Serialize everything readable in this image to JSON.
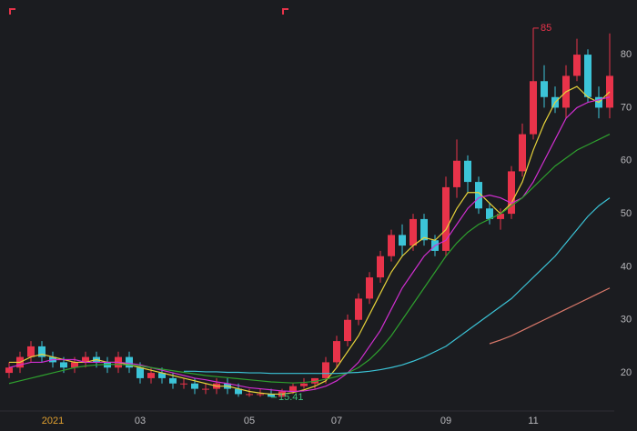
{
  "chart_data": {
    "type": "candlestick",
    "categories": [
      null,
      null,
      null,
      null,
      "2021",
      null,
      null,
      null,
      null,
      null,
      null,
      null,
      "03",
      null,
      null,
      null,
      null,
      null,
      null,
      null,
      null,
      null,
      "05",
      null,
      null,
      null,
      null,
      null,
      null,
      null,
      "07",
      null,
      null,
      null,
      null,
      null,
      null,
      null,
      null,
      null,
      "09",
      null,
      null,
      null,
      null,
      null,
      null,
      null,
      "11",
      null,
      null,
      null,
      null,
      null,
      null,
      null
    ],
    "open": [
      20,
      21,
      23,
      25,
      23,
      22,
      21,
      22,
      23,
      22,
      21,
      23,
      21,
      19,
      20,
      19,
      18,
      18,
      17,
      17,
      18,
      17,
      16,
      16,
      16,
      15.5,
      16.5,
      17.5,
      18,
      19,
      22,
      26,
      30,
      34,
      38,
      42,
      46,
      44,
      49,
      45,
      43,
      55,
      60,
      56,
      51,
      49,
      50,
      58,
      65,
      75,
      72,
      70,
      76,
      80,
      72,
      70
    ],
    "high": [
      22,
      24,
      26,
      26,
      24,
      23,
      23,
      24,
      24,
      23,
      24,
      24,
      22,
      21,
      21,
      20,
      19,
      19,
      18,
      19,
      19,
      18,
      17,
      17,
      17,
      17,
      18,
      19,
      19,
      23,
      27,
      31,
      35,
      39,
      43,
      47,
      48,
      50,
      50,
      46,
      57,
      64,
      61,
      57,
      52,
      51,
      59,
      67,
      85,
      78,
      74,
      78,
      83,
      81,
      74,
      84
    ],
    "low": [
      19,
      20,
      22,
      22,
      21,
      20,
      20,
      21,
      21,
      20,
      20,
      20,
      18,
      18,
      18,
      17,
      17,
      16,
      16,
      16,
      16,
      15.5,
      15.5,
      15.5,
      15.41,
      15.5,
      16,
      17,
      17,
      18,
      21,
      25,
      29,
      33,
      37,
      41,
      42,
      43,
      44,
      42,
      42,
      53,
      54,
      50,
      48,
      47,
      49,
      57,
      64,
      70,
      69,
      68,
      75,
      71,
      68,
      68
    ],
    "close": [
      21,
      23,
      25,
      23,
      22,
      21,
      22,
      23,
      22,
      21,
      23,
      21,
      19,
      20,
      19,
      18,
      18,
      17,
      17,
      18,
      17,
      16,
      16,
      16,
      15.5,
      16.5,
      17.5,
      18,
      19,
      22,
      26,
      30,
      34,
      38,
      42,
      46,
      44,
      49,
      45,
      43,
      55,
      60,
      56,
      51,
      49,
      50,
      58,
      65,
      75,
      72,
      70,
      76,
      80,
      72,
      70,
      76
    ],
    "up_color": "#e8334a",
    "down_color": "#3cc4d8",
    "series": [
      {
        "color": "#e6d23a",
        "values": [
          22,
          22,
          23,
          23.5,
          23,
          22.5,
          22,
          22,
          22.5,
          22,
          22,
          21.5,
          21,
          20.5,
          20,
          19.5,
          19,
          18.5,
          18,
          17.5,
          17.5,
          17,
          16.5,
          16.2,
          16,
          16,
          16.3,
          16.8,
          17.5,
          18.5,
          21,
          24,
          27,
          31,
          35,
          39,
          42,
          44,
          45.5,
          45,
          47,
          51,
          54,
          54,
          52,
          50,
          52,
          56,
          62,
          67,
          71,
          73,
          74,
          72,
          71,
          73
        ]
      },
      {
        "color": "#d02fd0",
        "values": [
          21,
          21.5,
          22,
          22,
          22.5,
          22.5,
          22.5,
          22,
          22,
          22,
          22,
          21.8,
          21.5,
          21,
          20.5,
          20,
          19.5,
          19,
          18.7,
          18.3,
          18,
          17.6,
          17.2,
          17,
          16.8,
          16.6,
          16.5,
          16.6,
          16.9,
          17.5,
          18.5,
          20,
          22,
          25,
          28,
          32,
          36,
          39,
          42,
          44,
          45,
          48,
          51,
          53,
          53.5,
          53,
          52,
          53,
          56,
          60,
          64,
          68,
          70,
          71,
          71.5,
          72
        ]
      },
      {
        "color": "#2ea02e",
        "values": [
          18,
          18.5,
          19,
          19.5,
          20,
          20.5,
          21,
          21.3,
          21.5,
          21.6,
          21.6,
          21.5,
          21.3,
          21,
          20.7,
          20.4,
          20.1,
          19.8,
          19.5,
          19.3,
          19.1,
          18.9,
          18.7,
          18.5,
          18.3,
          18.2,
          18.1,
          18.2,
          18.4,
          18.8,
          19.3,
          20,
          21,
          22.5,
          24.5,
          27,
          30,
          33,
          36,
          39,
          42,
          44.5,
          46.5,
          48,
          49,
          50,
          51.5,
          53,
          55,
          57,
          59,
          60.5,
          62,
          63,
          64,
          65
        ]
      },
      {
        "color": "#3bc3d6",
        "values": [
          null,
          null,
          null,
          null,
          null,
          null,
          null,
          null,
          null,
          null,
          null,
          null,
          null,
          null,
          null,
          null,
          20.3,
          20.3,
          20.2,
          20.2,
          20.1,
          20.1,
          20,
          20,
          19.9,
          19.9,
          19.9,
          19.9,
          19.9,
          19.9,
          19.9,
          20,
          20.1,
          20.3,
          20.6,
          21,
          21.5,
          22.2,
          23,
          24,
          25,
          26.5,
          28,
          29.5,
          31,
          32.5,
          34,
          36,
          38,
          40,
          42,
          44.5,
          47,
          49.5,
          51.5,
          53
        ]
      },
      {
        "color": "#d9786a",
        "values": [
          null,
          null,
          null,
          null,
          null,
          null,
          null,
          null,
          null,
          null,
          null,
          null,
          null,
          null,
          null,
          null,
          null,
          null,
          null,
          null,
          null,
          null,
          null,
          null,
          null,
          null,
          null,
          null,
          null,
          null,
          null,
          null,
          null,
          null,
          null,
          null,
          null,
          null,
          null,
          null,
          null,
          null,
          null,
          null,
          25.5,
          26.2,
          27,
          28,
          29,
          30,
          31,
          32,
          33,
          34,
          35,
          36
        ]
      }
    ],
    "ylim": [
      12.3,
      90.3
    ],
    "yticks": [
      20,
      30,
      40,
      50,
      60,
      70,
      80
    ],
    "first_label_color": "#e0a030",
    "max_color": "#e8334a",
    "min_color": "#3fbf7a"
  }
}
